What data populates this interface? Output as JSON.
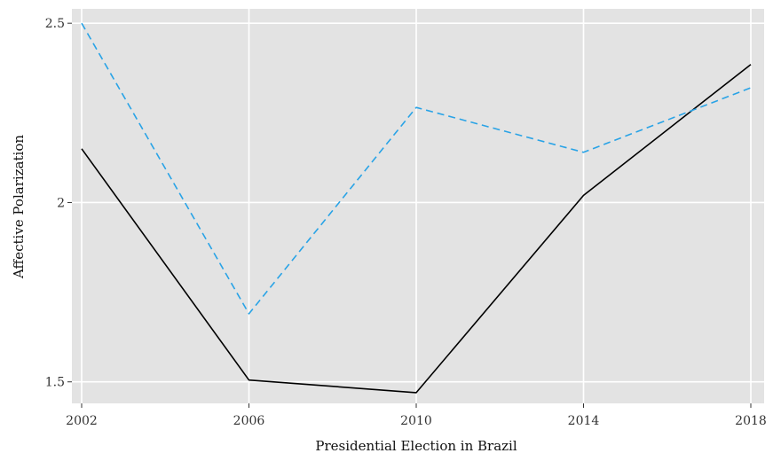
{
  "chart_data": {
    "type": "line",
    "title": "",
    "xlabel": "Presidential Election in Brazil",
    "ylabel": "Affective Polarization",
    "x": [
      2002,
      2006,
      2010,
      2014,
      2018
    ],
    "x_tick_labels": [
      "2002",
      "2006",
      "2010",
      "2014",
      "2018"
    ],
    "y_ticks": [
      1.5,
      2,
      2.5
    ],
    "y_tick_labels": [
      "1.5",
      "2",
      "2.5"
    ],
    "xlim": [
      2002,
      2018
    ],
    "ylim": [
      1.44,
      2.54
    ],
    "grid": true,
    "legend": "none",
    "series": [
      {
        "values": [
          2.15,
          1.505,
          1.47,
          2.02,
          2.385
        ],
        "color": "#000000",
        "style": "solid"
      },
      {
        "values": [
          2.5,
          1.69,
          2.265,
          2.14,
          2.32
        ],
        "color": "#29a3e6",
        "style": "dashed"
      }
    ],
    "background": "#e3e3e3",
    "grid_color": "#ffffff"
  }
}
